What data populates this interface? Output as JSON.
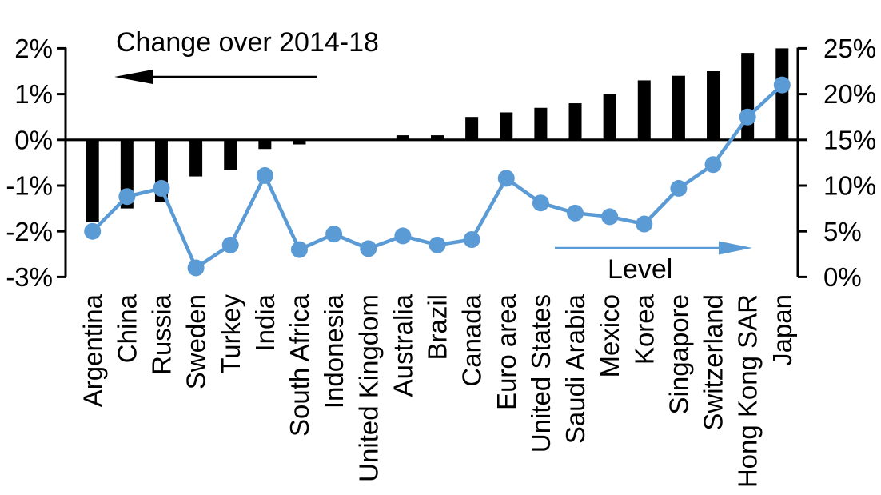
{
  "chart_data": {
    "type": "combo",
    "title": "",
    "categories": [
      "Argentina",
      "China",
      "Russia",
      "Sweden",
      "Turkey",
      "India",
      "South Africa",
      "Indonesia",
      "United Kingdom",
      "Australia",
      "Brazil",
      "Canada",
      "Euro area",
      "United States",
      "Saudi Arabia",
      "Mexico",
      "Korea",
      "Singapore",
      "Switzerland",
      "Hong Kong SAR",
      "Japan"
    ],
    "series": [
      {
        "name": "Change over 2014-18",
        "type": "bar",
        "axis": "left",
        "color": "#000000",
        "arrow_direction": "left",
        "values": [
          -1.8,
          -1.5,
          -1.35,
          -0.8,
          -0.65,
          -0.2,
          -0.1,
          0,
          0,
          0.1,
          0.1,
          0.5,
          0.6,
          0.7,
          0.8,
          1.0,
          1.3,
          1.4,
          1.5,
          1.9,
          2.0
        ]
      },
      {
        "name": "Level",
        "type": "line",
        "axis": "right",
        "color": "#5B9BD5",
        "arrow_direction": "right",
        "values": [
          5.0,
          8.8,
          9.7,
          1.0,
          3.5,
          11.1,
          3.0,
          4.7,
          3.1,
          4.5,
          3.5,
          4.1,
          10.8,
          8.1,
          7.0,
          6.6,
          5.8,
          9.7,
          12.3,
          17.5,
          21.0
        ]
      }
    ],
    "left_axis": {
      "min": -3,
      "max": 2,
      "ticks": [
        2,
        1,
        0,
        -1,
        -2,
        -3
      ],
      "tick_labels": [
        "2%",
        "1%",
        "0%",
        "-1%",
        "-2%",
        "-3%"
      ]
    },
    "right_axis": {
      "min": 0,
      "max": 25,
      "ticks": [
        25,
        20,
        15,
        10,
        5,
        0
      ],
      "tick_labels": [
        "25%",
        "20%",
        "15%",
        "10%",
        "5%",
        "0%"
      ]
    },
    "grid": false,
    "legend_position": "arrow annotations inside plot",
    "background_color": "#FFFFFF"
  }
}
